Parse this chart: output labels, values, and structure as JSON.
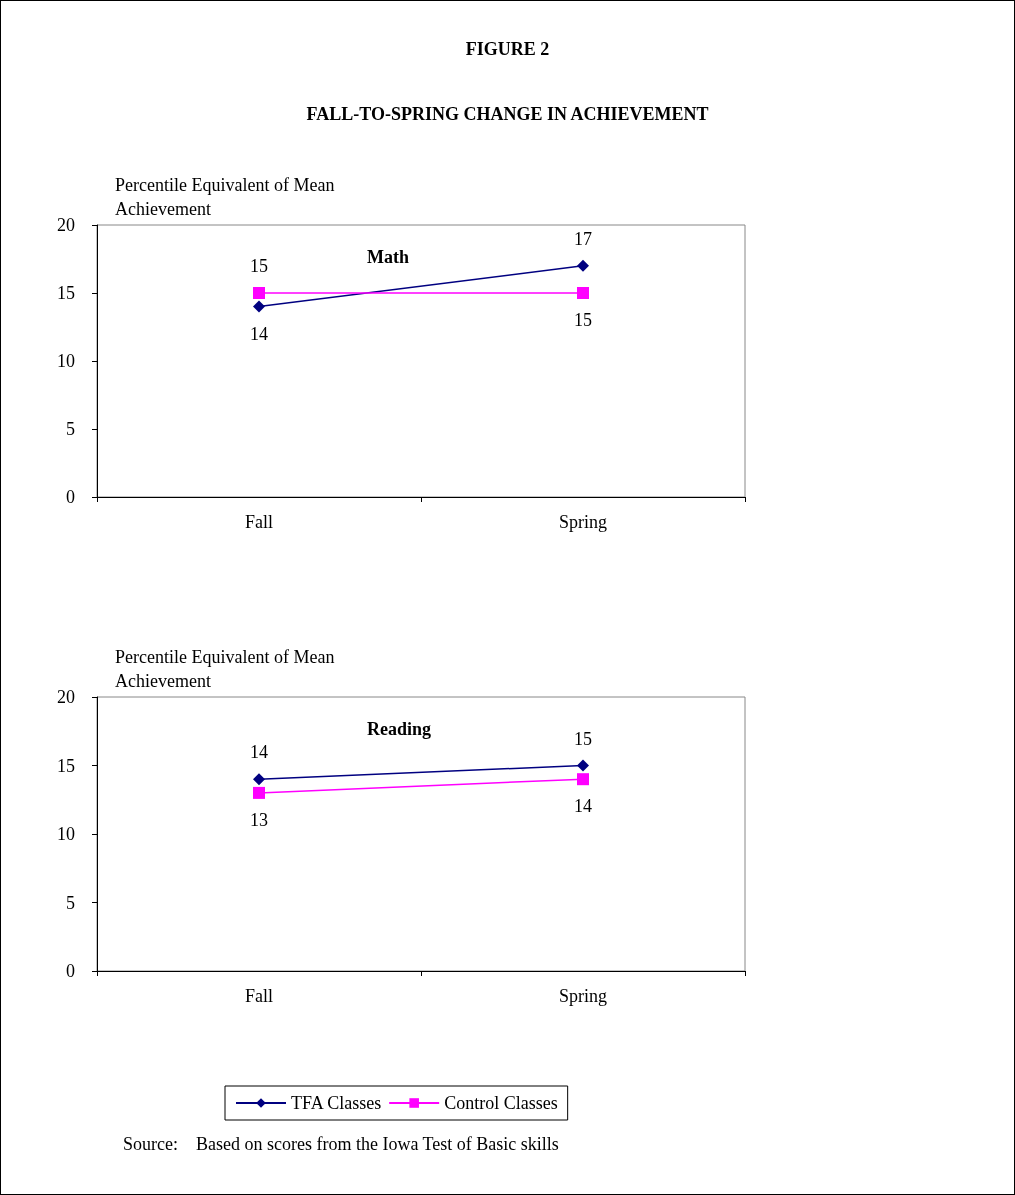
{
  "chart_data": [
    {
      "type": "line",
      "title": "Math",
      "ylabel": "Percentile Equivalent of Mean Achievement",
      "annotations": [
        "FIGURE 2",
        "FALL-TO-SPRING CHANGE IN ACHIEVEMENT"
      ],
      "categories": [
        "Fall",
        "Spring"
      ],
      "series": [
        {
          "color": "#000080",
          "marker": "diamond",
          "values": [
            14,
            17
          ]
        },
        {
          "color": "#ff00ff",
          "marker": "square",
          "values": [
            15,
            15
          ]
        }
      ],
      "ylim": [
        0,
        20
      ],
      "yticks": [
        0,
        5,
        10,
        15,
        20
      ],
      "grid": false,
      "legend": false,
      "data_labels": true
    },
    {
      "type": "line",
      "title": "Reading",
      "ylabel": "Percentile Equivalent of Mean Achievement",
      "annotations": [
        "Source:    Based on scores from the Iowa Test of Basic skills"
      ],
      "categories": [
        "Fall",
        "Spring"
      ],
      "series": [
        {
          "name": "TFA Classes",
          "color": "#000080",
          "marker": "diamond",
          "values": [
            14,
            15
          ]
        },
        {
          "name": "Control Classes",
          "color": "#ff00ff",
          "marker": "square",
          "values": [
            13,
            14
          ]
        }
      ],
      "ylim": [
        0,
        20
      ],
      "yticks": [
        0,
        5,
        10,
        15,
        20
      ],
      "grid": false,
      "legend": "bottom",
      "data_labels": true
    }
  ]
}
